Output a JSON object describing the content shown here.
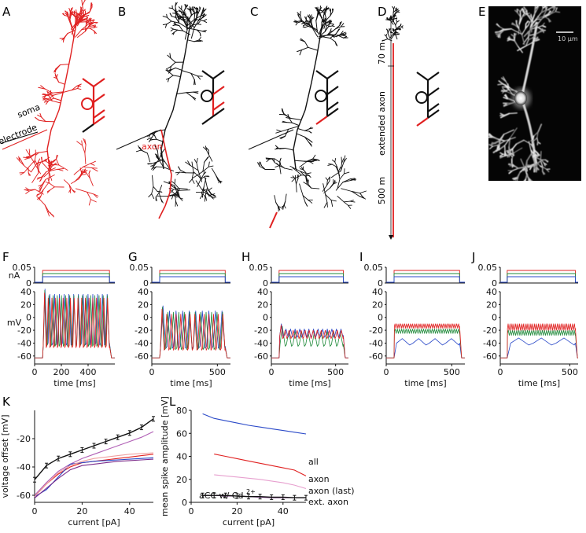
{
  "panels": {
    "A": "A",
    "B": "B",
    "C": "C",
    "D": "D",
    "E": "E",
    "F": "F",
    "G": "G",
    "H": "H",
    "I": "I",
    "J": "J",
    "K": "K",
    "L": "L"
  },
  "morph": {
    "soma": "soma",
    "electrode": "electrode",
    "axon": "axon",
    "seg_top": "70  m",
    "seg_mid": "extended axon",
    "seg_bot": "500  m",
    "scalebar": "10 μm"
  },
  "traces": {
    "nA": "nA",
    "mV": "mV",
    "xlabel": "time [ms]",
    "i_ticks": [
      "0.05",
      "0"
    ],
    "v_ticks": [
      "40",
      "20",
      "0",
      "-20",
      "-40",
      "-60"
    ],
    "x_ticks": [
      "0",
      "500"
    ],
    "x_ticks_F": [
      "0",
      "200",
      "400"
    ],
    "colors": {
      "low": "#2a49c8",
      "mid": "#1f8a3a",
      "high": "#e02020"
    }
  },
  "chart_data": [
    {
      "type": "line",
      "xlabel": "current [pA]",
      "ylabel": "voltage offset [mV]",
      "xlim": [
        0,
        50
      ],
      "ylim": [
        -65,
        0
      ],
      "x_ticks": [
        "0",
        "20",
        "40"
      ],
      "y_ticks": [
        "-20",
        "-40",
        "-60"
      ],
      "series": [
        {
          "x": [
            0,
            5,
            10,
            15,
            20,
            25,
            30,
            35,
            40,
            45,
            50
          ],
          "values": [
            -49,
            -39,
            -34,
            -31,
            -28,
            -25,
            -22,
            -19,
            -16,
            -12,
            -6
          ],
          "color": "#111111",
          "error_bars": true
        },
        {
          "x": [
            0,
            5,
            10,
            15,
            20,
            25,
            30,
            35,
            40,
            45,
            50
          ],
          "values": [
            -60,
            -51,
            -43,
            -38,
            -34,
            -31,
            -28,
            -25,
            -22,
            -19,
            -15
          ],
          "color": "#b05fb5"
        },
        {
          "x": [
            0,
            5,
            10,
            15,
            20,
            25,
            30,
            35,
            40,
            45,
            50
          ],
          "values": [
            -61,
            -52,
            -45,
            -40,
            -37,
            -36,
            -35,
            -34,
            -33,
            -32,
            -31
          ],
          "color": "#e02020"
        },
        {
          "x": [
            0,
            5,
            10,
            15,
            20,
            25,
            30,
            35,
            40,
            45,
            50
          ],
          "values": [
            -61,
            -56,
            -47,
            -38,
            -37,
            -36,
            -35.5,
            -35,
            -34.5,
            -34,
            -33.5
          ],
          "color": "#2a49c8"
        },
        {
          "x": [
            0,
            5,
            10,
            15,
            20,
            25,
            30,
            35,
            40,
            45,
            50
          ],
          "values": [
            -62,
            -55,
            -48,
            -42,
            -39,
            -38,
            -37,
            -36,
            -35.5,
            -35,
            -34.5
          ],
          "color": "#7a2a8a"
        },
        {
          "x": [
            0,
            5,
            10,
            15,
            20,
            25,
            30,
            35,
            40,
            45,
            50
          ],
          "values": [
            -61,
            -52,
            -44,
            -39,
            -36,
            -34,
            -33,
            -32,
            -31,
            -30.5,
            -30
          ],
          "color": "#f0a0a0"
        }
      ]
    },
    {
      "type": "line",
      "xlabel": "current [pA]",
      "ylabel": "mean spike amplitude [mV]",
      "xlim": [
        0,
        50
      ],
      "ylim": [
        0,
        80
      ],
      "x_ticks": [
        "0",
        "20",
        "40"
      ],
      "y_ticks": [
        "80",
        "60",
        "40",
        "20",
        "0"
      ],
      "annotation": "aCC w/ Cd",
      "annotation_sup": "2+",
      "series": [
        {
          "name": "all",
          "x": [
            5,
            10,
            15,
            20,
            25,
            30,
            35,
            40,
            45,
            50
          ],
          "values": [
            77,
            73,
            71,
            69,
            67,
            65.5,
            64,
            62.5,
            61,
            59.5
          ],
          "color": "#2a49c8"
        },
        {
          "name": "axon",
          "x": [
            10,
            15,
            20,
            25,
            30,
            35,
            40,
            45,
            50
          ],
          "values": [
            42,
            40,
            38,
            36,
            34,
            32,
            30,
            28,
            23
          ],
          "color": "#e02020"
        },
        {
          "name": "axon (last)",
          "x": [
            10,
            15,
            20,
            25,
            30,
            35,
            40,
            45,
            50
          ],
          "values": [
            24,
            23,
            22,
            21,
            20,
            18.5,
            17,
            15,
            12
          ],
          "color": "#e7a0cf"
        },
        {
          "name": "ext. axon",
          "x": [
            5,
            10,
            15,
            20,
            25,
            30,
            35,
            40,
            45,
            50
          ],
          "values": [
            6,
            6,
            5.5,
            5.5,
            5,
            4.5,
            4,
            4,
            4,
            4
          ],
          "color": "#7a2a8a"
        },
        {
          "name": "aCC w/ Cd",
          "x": [
            5,
            10,
            15,
            20,
            25,
            30,
            35,
            40,
            45,
            50
          ],
          "values": [
            6,
            6,
            6,
            5.5,
            5,
            5,
            4.5,
            4.5,
            4,
            4
          ],
          "color": "#111111",
          "error_bars": true
        }
      ]
    }
  ]
}
